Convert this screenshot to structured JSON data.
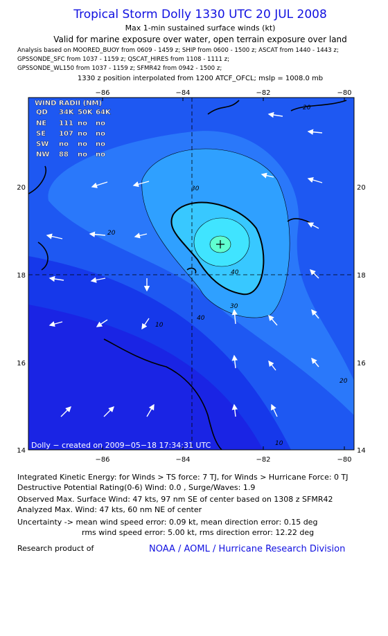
{
  "header": {
    "title": "Tropical Storm Dolly 1330 UTC 20 JUL 2008",
    "subtitle": "Max 1-min sustained surface winds (kt)",
    "validity": "Valid for marine exposure over water, open terrain exposure over land",
    "sources": [
      "Analysis based on  MOORED_BUOY from 0609 - 1459 z;  SHIP from 0600 - 1500 z;  ASCAT from 1440 - 1443 z;",
      "GPSSONDE_SFC from 1037 - 1159 z;  QSCAT_HIRES from 1108 - 1111 z;",
      "GPSSONDE_WL150 from 1037 - 1159 z;  SFMR42 from 0942 - 1500 z;"
    ],
    "position_note": "1330 z position interpolated from 1200 ATCF_OFCL; mslp = 1008.0 mb"
  },
  "map": {
    "lon_labels": [
      "−86",
      "−84",
      "−82",
      "−80"
    ],
    "lat_labels": [
      "20",
      "18",
      "16",
      "14"
    ],
    "wind_radii": {
      "title": "WIND RADII (NM)",
      "header": [
        "QD",
        "34K",
        "50K",
        "64K"
      ],
      "rows": [
        [
          "NE",
          "111",
          "no",
          "no"
        ],
        [
          "SE",
          "107",
          "no",
          "no"
        ],
        [
          "SW",
          "no",
          "no",
          "no"
        ],
        [
          "NW",
          "88",
          "no",
          "no"
        ]
      ]
    },
    "contour_labels": [
      "20",
      "20",
      "30",
      "40",
      "30",
      "10",
      "40",
      "20",
      "10"
    ],
    "credit": "Dolly − created on 2009−05−18 17:34:31 UTC"
  },
  "footer": {
    "lines": [
      "Integrated Kinetic Energy:  for Winds > TS force: 7 TJ,  for Winds > Hurricane Force: 0 TJ",
      "Destructive Potential Rating(0-6)   Wind: 0.0 , Surge/Waves: 1.9",
      "Observed Max. Surface Wind: 47 kts, 97 nm SE of center based on 1308 z SFMR42",
      "Analyzed Max. Wind: 47 kts, 60 nm NE of center",
      "Uncertainty -> mean wind speed error: 0.09 kt,   mean direction error: 0.15 deg",
      "rms wind speed error: 5.00 kt,   rms direction error: 12.22 deg"
    ],
    "research": "Research product of",
    "org": "NOAA / AOML / Hurricane Research Division"
  }
}
